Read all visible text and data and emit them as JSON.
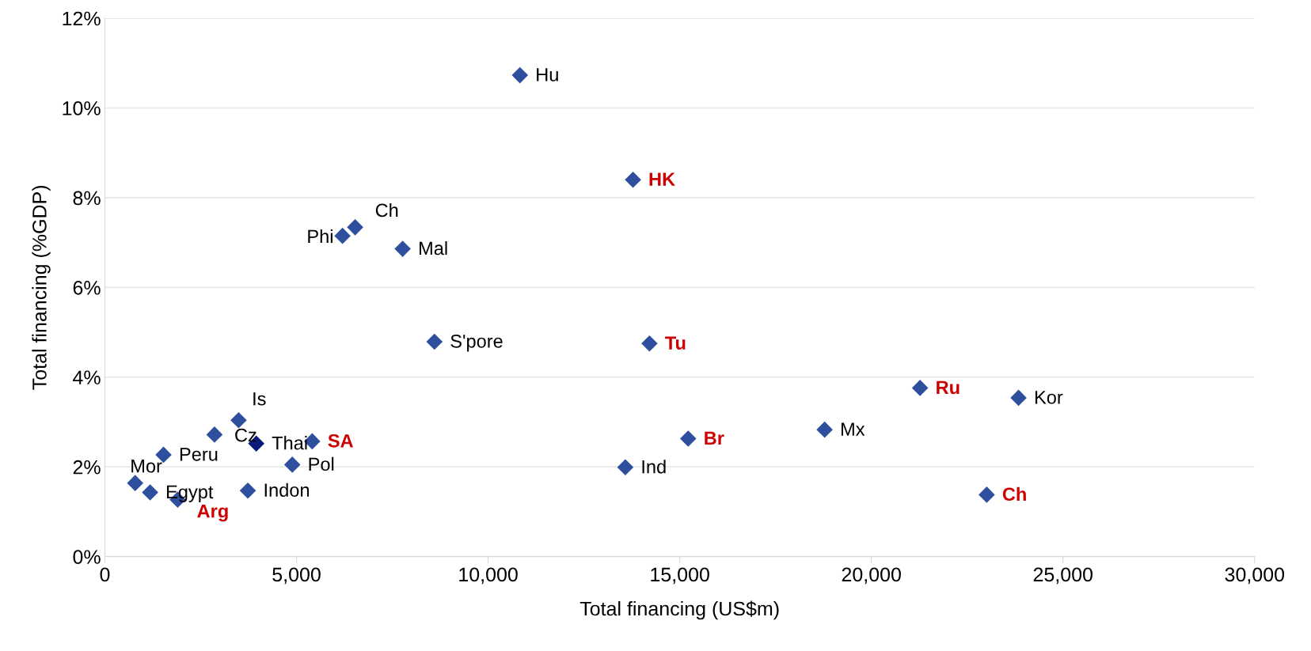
{
  "chart_data": {
    "type": "scatter",
    "xlabel": "Total financing (US$m)",
    "ylabel": "Total financing (%GDP)",
    "xlim": [
      0,
      30000
    ],
    "xticks": [
      0,
      {
        "value": 5000,
        "label": "5,000"
      },
      {
        "value": 10000,
        "label": "10,000"
      },
      {
        "value": 15000,
        "label": "15,000"
      },
      {
        "value": 20000,
        "label": "20,000"
      },
      {
        "value": 25000,
        "label": "25,000"
      },
      {
        "value": 30000,
        "label": "30,000"
      }
    ],
    "ylim": [
      0,
      12
    ],
    "yticks": [
      {
        "value": 0,
        "label": "0%"
      },
      {
        "value": 2,
        "label": "2%"
      },
      {
        "value": 4,
        "label": "4%"
      },
      {
        "value": 6,
        "label": "6%"
      },
      {
        "value": 8,
        "label": "8%"
      },
      {
        "value": 10,
        "label": "10%"
      },
      {
        "value": 12,
        "label": "12%"
      }
    ],
    "grid": "y",
    "marker": "diamond",
    "series": [
      {
        "color": "#2e4f9e",
        "x": [
          10830,
          6530,
          6200,
          7770,
          8600,
          23840,
          18780,
          13580,
          3490,
          2860,
          1530,
          4890,
          790,
          1180,
          3730
        ],
        "values": [
          10.73,
          7.34,
          7.15,
          6.86,
          4.79,
          3.54,
          2.83,
          1.99,
          3.04,
          2.72,
          2.27,
          2.05,
          1.64,
          1.43,
          1.47
        ],
        "value_labels": [
          "Hu",
          "Ch",
          "Phi",
          "Mal",
          "S'pore",
          "Kor",
          "Mx",
          "Ind",
          "Is",
          "Cz",
          "Peru",
          "Pol",
          "Mor",
          "Egypt",
          "Indon"
        ]
      },
      {
        "color": "#2e4f9e",
        "x": [
          13780,
          14210,
          21270,
          15220,
          5410,
          23010,
          1900
        ],
        "values": [
          8.4,
          4.75,
          3.76,
          2.63,
          2.57,
          1.38,
          1.27
        ],
        "value_labels": [
          "HK",
          "Tu",
          "Ru",
          "Br",
          "SA",
          "Ch",
          "Arg"
        ]
      },
      {
        "color": "#0a1a7a",
        "x": [
          3950
        ],
        "values": [
          2.52
        ],
        "value_labels": [
          "Thai"
        ]
      }
    ]
  }
}
